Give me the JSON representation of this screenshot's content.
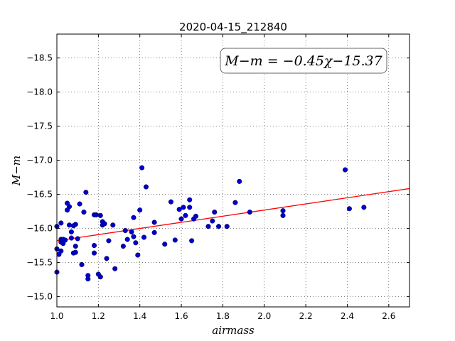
{
  "chart_data": {
    "type": "scatter",
    "title": "2020-04-15_212840",
    "xlabel": "airmass",
    "ylabel": "M−m",
    "xlim": [
      1.0,
      2.7
    ],
    "ylim": [
      -18.85,
      -14.85
    ],
    "y_inverted": true,
    "grid": true,
    "x_ticks": [
      1.0,
      1.2,
      1.4,
      1.6,
      1.8,
      2.0,
      2.2,
      2.4,
      2.6
    ],
    "x_tick_labels": [
      "1.0",
      "1.2",
      "1.4",
      "1.6",
      "1.8",
      "2.0",
      "2.2",
      "2.4",
      "2.6"
    ],
    "y_ticks": [
      -15.0,
      -15.5,
      -16.0,
      -16.5,
      -17.0,
      -17.5,
      -18.0,
      -18.5
    ],
    "y_tick_labels": [
      "−15.0",
      "−15.5",
      "−16.0",
      "−16.5",
      "−17.0",
      "−17.5",
      "−18.0",
      "−18.5"
    ],
    "annotation": "M−m = −0.45χ−15.37",
    "fit": {
      "slope": -0.45,
      "intercept": -15.37,
      "color": "#ff0000"
    },
    "series": [
      {
        "color": "#0000cc",
        "points": [
          [
            1.0,
            -15.36
          ],
          [
            1.0,
            -15.7
          ],
          [
            1.0,
            -16.03
          ],
          [
            1.01,
            -15.62
          ],
          [
            1.02,
            -15.67
          ],
          [
            1.02,
            -15.8
          ],
          [
            1.02,
            -15.84
          ],
          [
            1.02,
            -16.08
          ],
          [
            1.03,
            -15.78
          ],
          [
            1.03,
            -15.84
          ],
          [
            1.04,
            -15.83
          ],
          [
            1.05,
            -16.27
          ],
          [
            1.05,
            -16.37
          ],
          [
            1.06,
            -16.05
          ],
          [
            1.06,
            -16.32
          ],
          [
            1.07,
            -15.86
          ],
          [
            1.07,
            -15.95
          ],
          [
            1.08,
            -15.64
          ],
          [
            1.08,
            -16.04
          ],
          [
            1.09,
            -15.65
          ],
          [
            1.09,
            -15.74
          ],
          [
            1.09,
            -16.06
          ],
          [
            1.1,
            -15.85
          ],
          [
            1.11,
            -16.36
          ],
          [
            1.12,
            -15.47
          ],
          [
            1.13,
            -16.24
          ],
          [
            1.14,
            -16.53
          ],
          [
            1.15,
            -15.26
          ],
          [
            1.15,
            -15.31
          ],
          [
            1.18,
            -15.64
          ],
          [
            1.18,
            -15.75
          ],
          [
            1.18,
            -16.2
          ],
          [
            1.19,
            -16.2
          ],
          [
            1.2,
            -15.33
          ],
          [
            1.21,
            -15.29
          ],
          [
            1.21,
            -16.19
          ],
          [
            1.22,
            -16.05
          ],
          [
            1.22,
            -16.1
          ],
          [
            1.23,
            -16.07
          ],
          [
            1.24,
            -15.56
          ],
          [
            1.25,
            -15.82
          ],
          [
            1.27,
            -16.05
          ],
          [
            1.28,
            -15.41
          ],
          [
            1.32,
            -15.74
          ],
          [
            1.33,
            -15.97
          ],
          [
            1.34,
            -15.84
          ],
          [
            1.36,
            -15.95
          ],
          [
            1.37,
            -15.88
          ],
          [
            1.37,
            -16.16
          ],
          [
            1.38,
            -15.79
          ],
          [
            1.39,
            -15.61
          ],
          [
            1.4,
            -16.27
          ],
          [
            1.41,
            -16.89
          ],
          [
            1.42,
            -15.87
          ],
          [
            1.43,
            -16.61
          ],
          [
            1.47,
            -15.94
          ],
          [
            1.47,
            -16.09
          ],
          [
            1.52,
            -15.77
          ],
          [
            1.55,
            -16.39
          ],
          [
            1.57,
            -15.83
          ],
          [
            1.59,
            -16.28
          ],
          [
            1.6,
            -16.14
          ],
          [
            1.61,
            -16.31
          ],
          [
            1.62,
            -16.19
          ],
          [
            1.64,
            -16.31
          ],
          [
            1.64,
            -16.42
          ],
          [
            1.65,
            -15.82
          ],
          [
            1.66,
            -16.14
          ],
          [
            1.67,
            -16.18
          ],
          [
            1.73,
            -16.03
          ],
          [
            1.75,
            -16.11
          ],
          [
            1.76,
            -16.24
          ],
          [
            1.78,
            -16.03
          ],
          [
            1.82,
            -16.03
          ],
          [
            1.86,
            -16.38
          ],
          [
            1.88,
            -16.69
          ],
          [
            1.93,
            -16.24
          ],
          [
            2.09,
            -16.19
          ],
          [
            2.09,
            -16.26
          ],
          [
            2.39,
            -16.86
          ],
          [
            2.41,
            -16.29
          ],
          [
            2.48,
            -16.31
          ]
        ]
      }
    ]
  }
}
